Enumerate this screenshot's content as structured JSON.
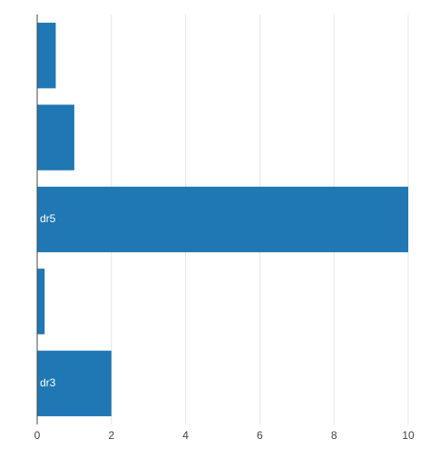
{
  "chart_data": {
    "type": "barh",
    "categories": [
      null,
      null,
      "dr5",
      null,
      "dr3"
    ],
    "values": [
      0.5,
      1,
      10,
      0.2,
      2
    ],
    "color": "#1f77b4",
    "xlim": [
      0,
      10
    ],
    "xticks": [
      0,
      2,
      4,
      6,
      8,
      10
    ],
    "grid": true
  }
}
